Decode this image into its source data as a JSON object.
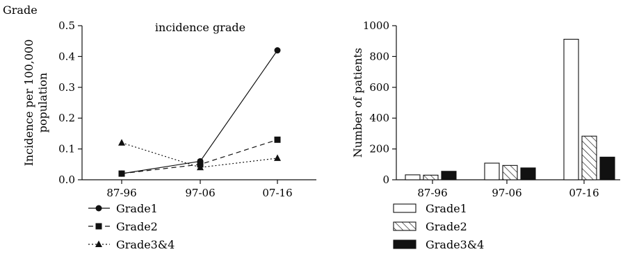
{
  "figure_label": "Grade",
  "chart_data": [
    {
      "type": "line",
      "title": "incidence grade",
      "xlabel": "",
      "ylabel": [
        "Incidence per 100,000",
        "population"
      ],
      "categories": [
        "87-96",
        "97-06",
        "07-16"
      ],
      "ylim": [
        0,
        0.5
      ],
      "yticks": [
        "0.0",
        "0.1",
        "0.2",
        "0.3",
        "0.4",
        "0.5"
      ],
      "grid": false,
      "legend": "bottom",
      "series": [
        {
          "name": "Grade1",
          "values": [
            0.02,
            0.06,
            0.42
          ],
          "marker": "circle",
          "line": "solid"
        },
        {
          "name": "Grade2",
          "values": [
            0.02,
            0.05,
            0.13
          ],
          "marker": "square",
          "line": "dashed"
        },
        {
          "name": "Grade3&4",
          "values": [
            0.12,
            0.04,
            0.07
          ],
          "marker": "triangle",
          "line": "dotted"
        }
      ]
    },
    {
      "type": "bar",
      "title": "",
      "xlabel": "",
      "ylabel": "Number of patients",
      "categories": [
        "87-96",
        "97-06",
        "07-16"
      ],
      "ylim": [
        0,
        1000
      ],
      "yticks": [
        "0",
        "200",
        "400",
        "600",
        "800",
        "1000"
      ],
      "grid": false,
      "legend": "bottom",
      "series": [
        {
          "name": "Grade1",
          "values": [
            32,
            108,
            912
          ],
          "fill": "white"
        },
        {
          "name": "Grade2",
          "values": [
            30,
            93,
            283
          ],
          "fill": "hatch"
        },
        {
          "name": "Grade3&4",
          "values": [
            55,
            77,
            147
          ],
          "fill": "black"
        }
      ]
    }
  ]
}
